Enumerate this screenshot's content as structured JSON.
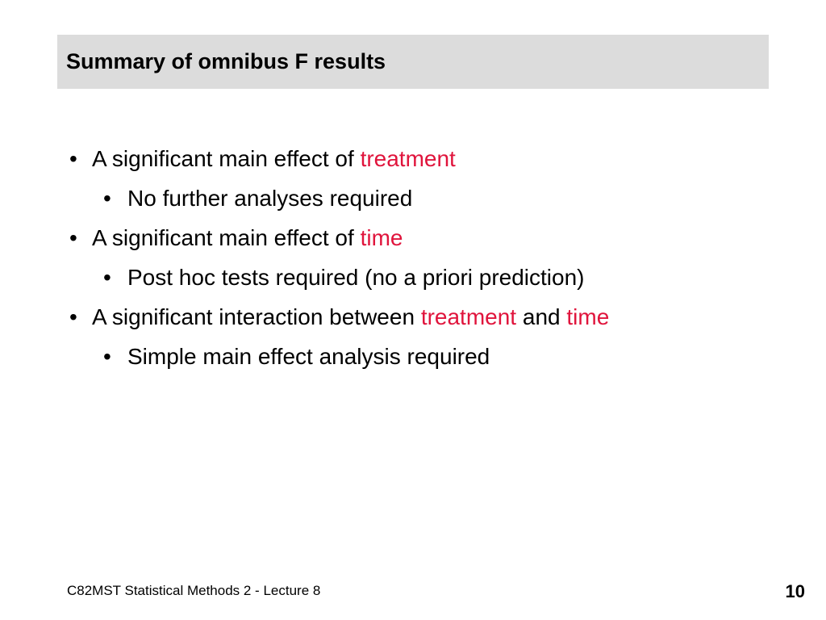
{
  "slide": {
    "title": "Summary of omnibus F results",
    "accent_color": "#e0143c",
    "bullets": [
      {
        "level": 1,
        "parts": [
          {
            "text": "A significant main effect of ",
            "highlight": false
          },
          {
            "text": "treatment",
            "highlight": true
          }
        ]
      },
      {
        "level": 2,
        "parts": [
          {
            "text": "No further analyses required",
            "highlight": false
          }
        ]
      },
      {
        "level": 1,
        "parts": [
          {
            "text": "A significant main effect of ",
            "highlight": false
          },
          {
            "text": "time",
            "highlight": true
          }
        ]
      },
      {
        "level": 2,
        "parts": [
          {
            "text": "Post hoc tests required (no a priori prediction)",
            "highlight": false
          }
        ]
      },
      {
        "level": 1,
        "parts": [
          {
            "text": "A significant interaction between ",
            "highlight": false
          },
          {
            "text": "treatment",
            "highlight": true
          },
          {
            "text": " and ",
            "highlight": false
          },
          {
            "text": "time",
            "highlight": true
          }
        ]
      },
      {
        "level": 2,
        "parts": [
          {
            "text": "Simple main effect analysis required",
            "highlight": false
          }
        ]
      }
    ]
  },
  "footer": {
    "text": "C82MST Statistical Methods 2 - Lecture 8",
    "page_number": "10"
  }
}
